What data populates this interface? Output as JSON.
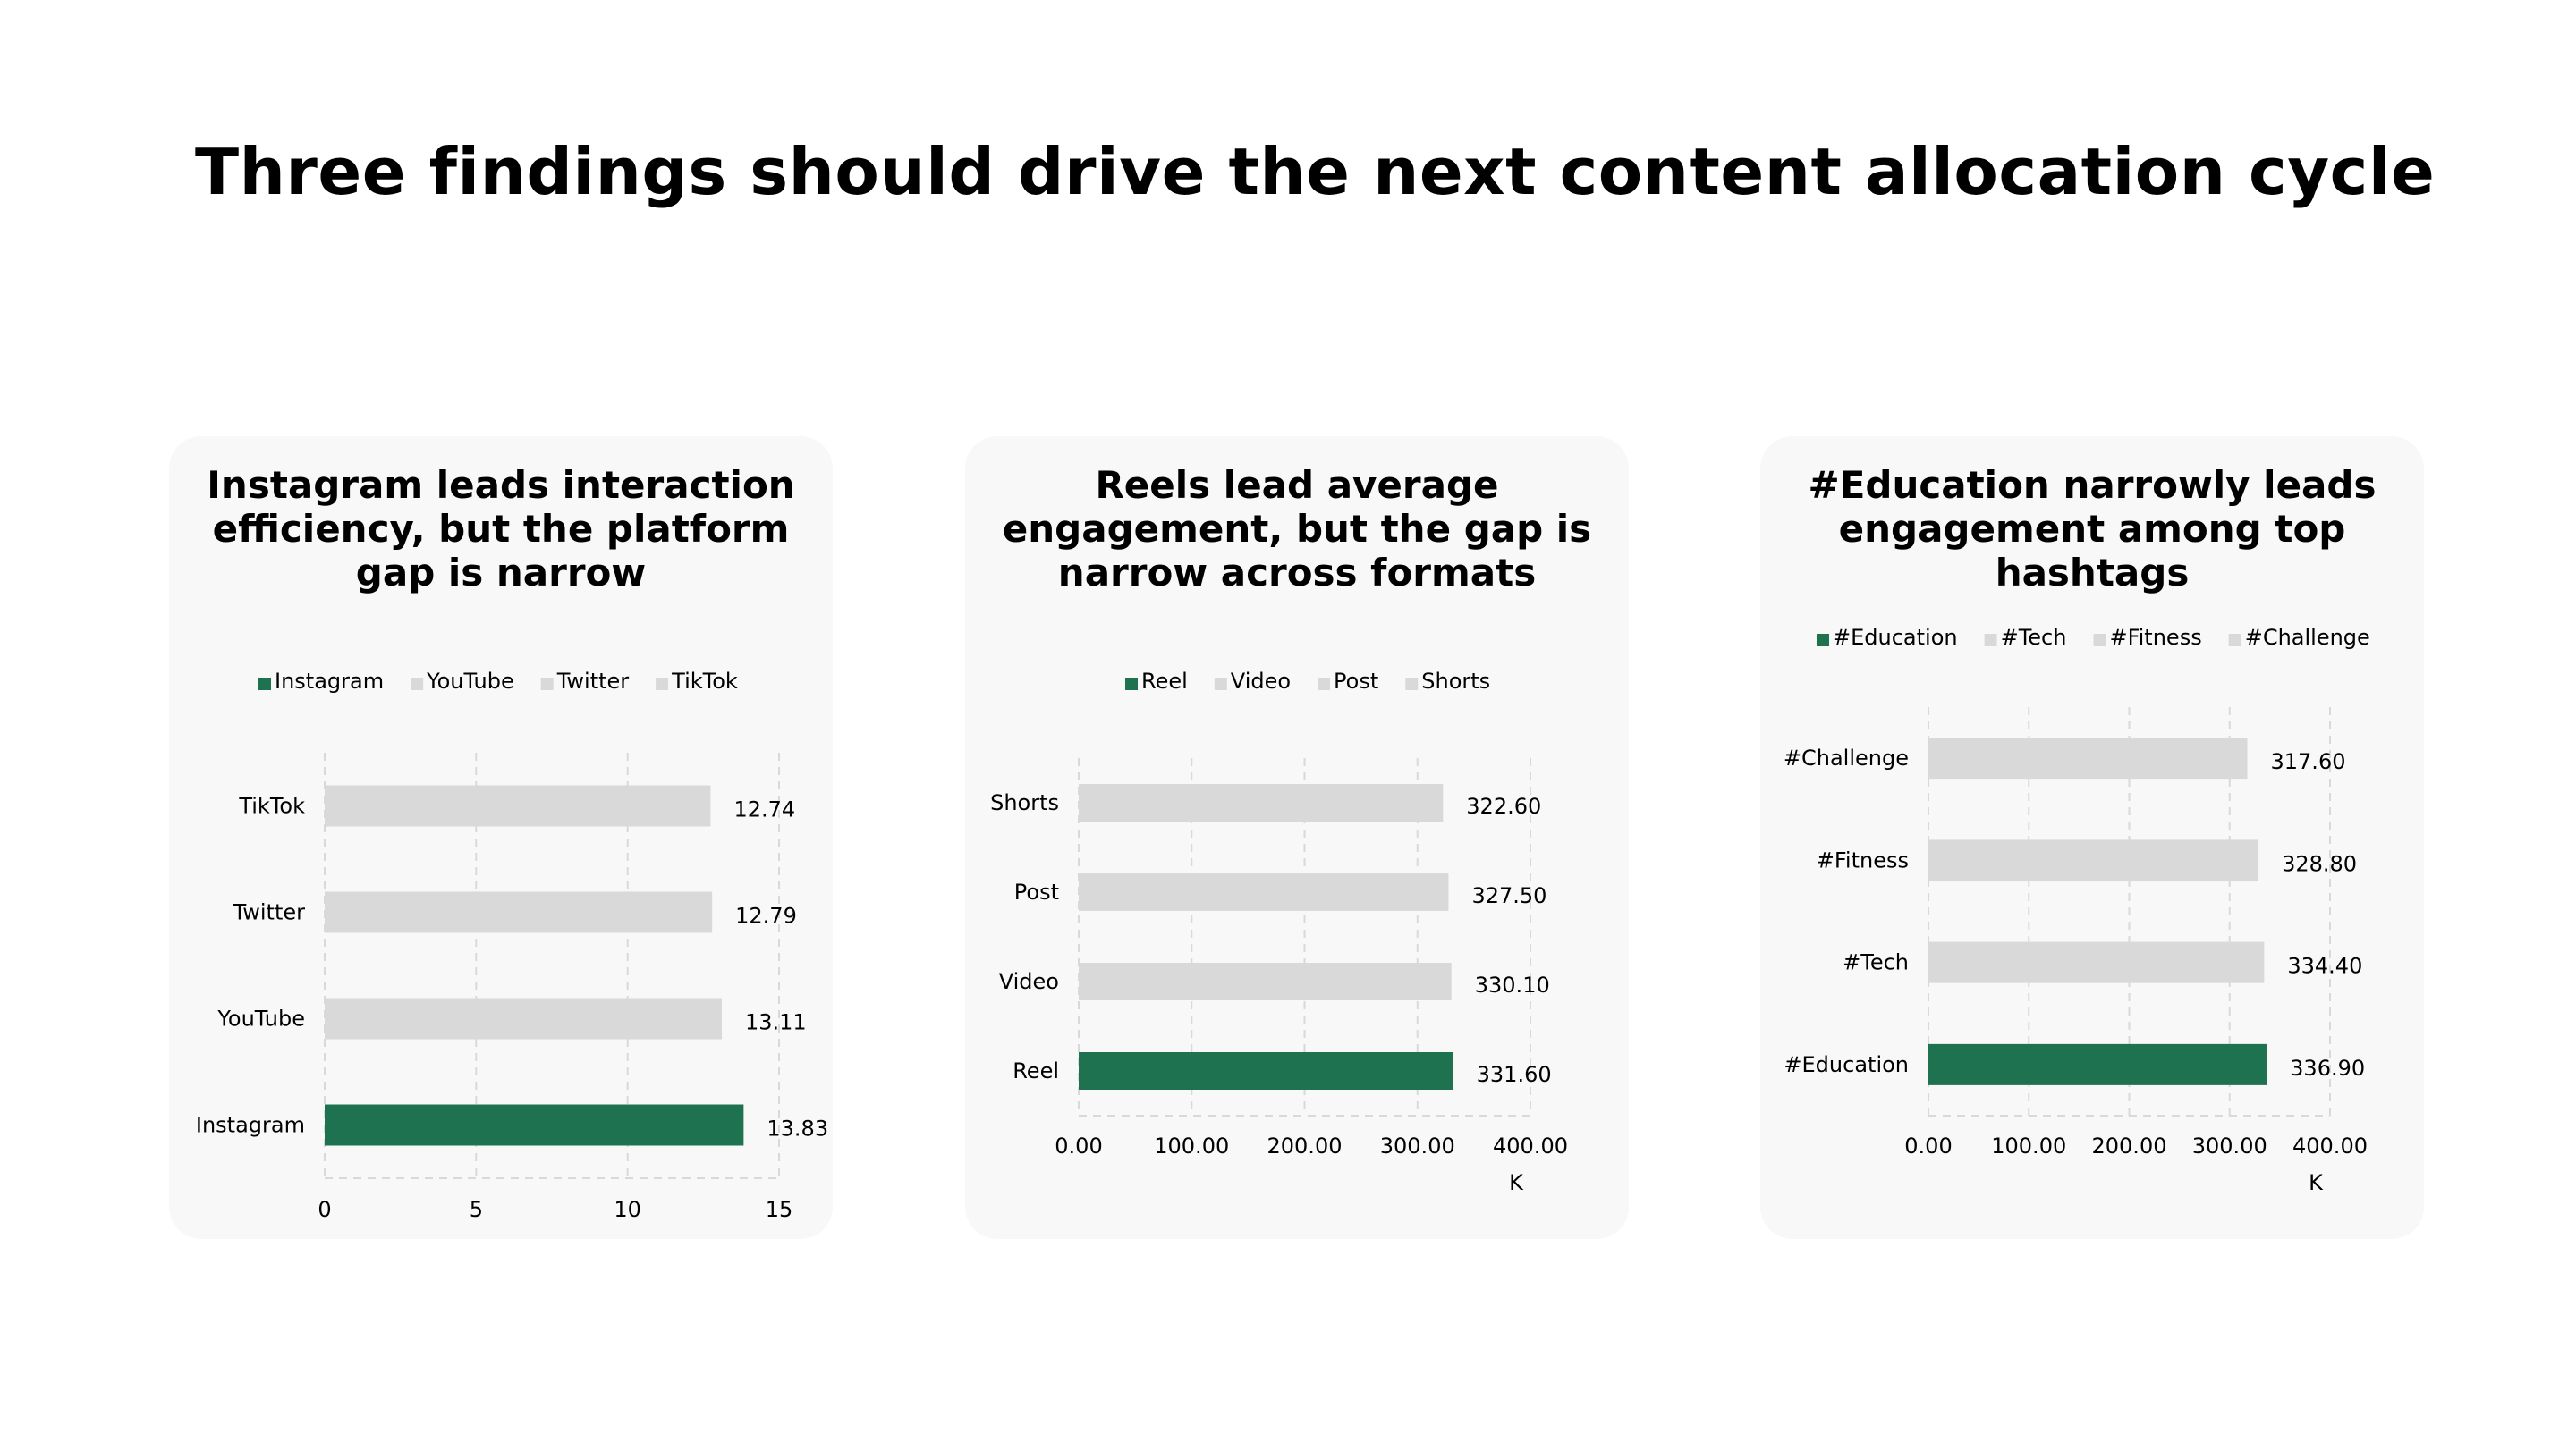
{
  "page": {
    "title": "Three findings should drive the next content allocation cycle"
  },
  "colors": {
    "highlight": "#1e7250",
    "muted": "#d9d9d9",
    "grid": "#d9d9d9",
    "card": "#f8f8f8"
  },
  "chart_data": [
    {
      "type": "bar",
      "title": "Instagram leads interaction efficiency, but the platform gap is narrow",
      "categories": [
        "Instagram",
        "YouTube",
        "Twitter",
        "TikTok"
      ],
      "values": [
        13.83,
        13.11,
        12.79,
        12.74
      ],
      "value_labels": [
        "13.83",
        "13.11",
        "12.79",
        "12.74"
      ],
      "highlight": "Instagram",
      "legend": [
        "Instagram",
        "YouTube",
        "Twitter",
        "TikTok"
      ],
      "legend_position": "top",
      "xlim": [
        0,
        15
      ],
      "ticks": [
        0,
        5,
        10,
        15
      ],
      "tick_labels": [
        "0",
        "5",
        "10",
        "15"
      ],
      "unit_label": "",
      "grid": true
    },
    {
      "type": "bar",
      "title": "Reels lead average engagement, but the gap is narrow across formats",
      "categories": [
        "Reel",
        "Video",
        "Post",
        "Shorts"
      ],
      "values": [
        331.6,
        330.1,
        327.5,
        322.6
      ],
      "value_labels": [
        "331.60",
        "330.10",
        "327.50",
        "322.60"
      ],
      "highlight": "Reel",
      "legend": [
        "Reel",
        "Video",
        "Post",
        "Shorts"
      ],
      "legend_position": "top",
      "xlim": [
        0,
        400
      ],
      "ticks": [
        0,
        100,
        200,
        300,
        400
      ],
      "tick_labels": [
        "0.00",
        "100.00",
        "200.00",
        "300.00",
        "400.00"
      ],
      "unit_label": "K",
      "grid": true
    },
    {
      "type": "bar",
      "title": "#Education narrowly leads engagement among top hashtags",
      "categories": [
        "#Education",
        "#Tech",
        "#Fitness",
        "#Challenge"
      ],
      "values": [
        336.9,
        334.4,
        328.8,
        317.6
      ],
      "value_labels": [
        "336.90",
        "334.40",
        "328.80",
        "317.60"
      ],
      "highlight": "#Education",
      "legend": [
        "#Education",
        "#Tech",
        "#Fitness",
        "#Challenge"
      ],
      "legend_position": "top",
      "xlim": [
        0,
        400
      ],
      "ticks": [
        0,
        100,
        200,
        300,
        400
      ],
      "tick_labels": [
        "0.00",
        "100.00",
        "200.00",
        "300.00",
        "400.00"
      ],
      "unit_label": "K",
      "grid": true
    }
  ]
}
